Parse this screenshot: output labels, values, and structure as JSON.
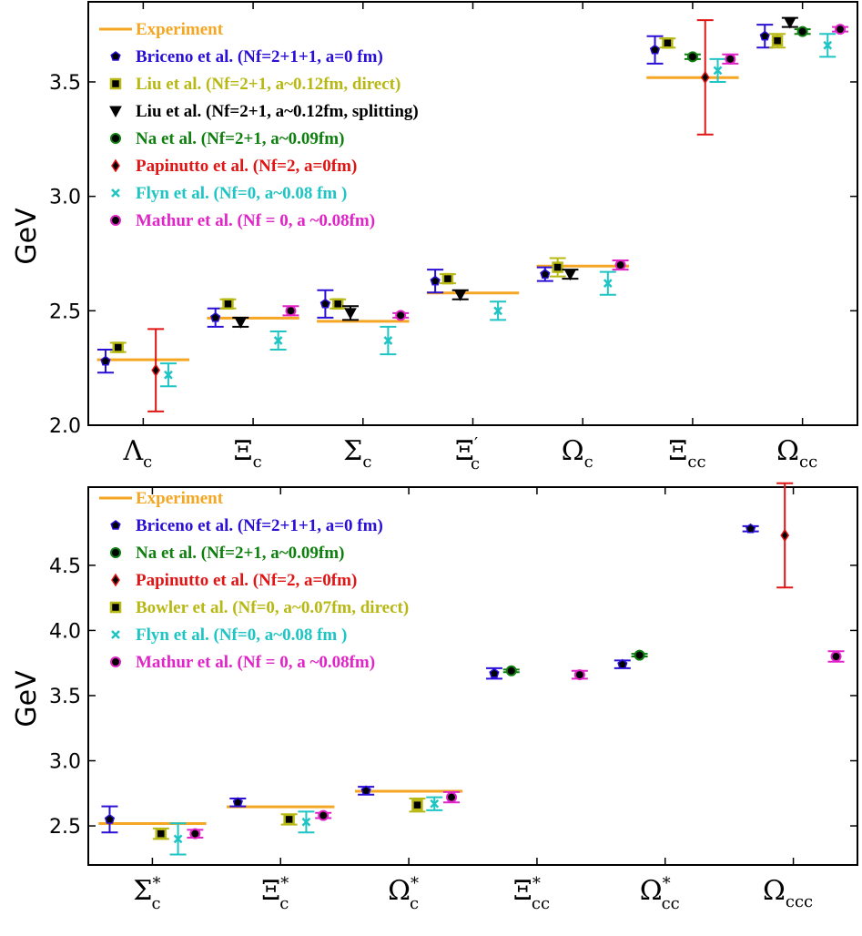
{
  "chart_data": [
    {
      "type": "scatter",
      "ylabel": "GeV",
      "ylim": [
        2.0,
        3.85
      ],
      "yticks": [
        2.0,
        2.5,
        3.0,
        3.5
      ],
      "categories": [
        {
          "name": "Λ_c",
          "main": "Λ",
          "sub": "c",
          "prime": false
        },
        {
          "name": "Ξ_c",
          "main": "Ξ",
          "sub": "c",
          "prime": false
        },
        {
          "name": "Σ_c",
          "main": "Σ",
          "sub": "c",
          "prime": false
        },
        {
          "name": "Ξ'_c",
          "main": "Ξ",
          "sub": "c",
          "prime": true
        },
        {
          "name": "Ω_c",
          "main": "Ω",
          "sub": "c",
          "prime": false
        },
        {
          "name": "Ξ_cc",
          "main": "Ξ",
          "sub": "cc",
          "prime": false
        },
        {
          "name": "Ω_cc",
          "main": "Ω",
          "sub": "cc",
          "prime": false
        }
      ],
      "experiment": {
        "name": "Experiment",
        "color": "#f5a623",
        "values": [
          2.286,
          2.468,
          2.454,
          2.578,
          2.695,
          3.519,
          null
        ]
      },
      "series": [
        {
          "name": "Briceno et al. (Nf=2+1+1, a=0 fm)",
          "color": "#2a0fd6",
          "marker": "pentagon",
          "values": [
            2.28,
            2.47,
            2.53,
            2.63,
            2.66,
            3.64,
            3.7
          ],
          "errors": [
            0.05,
            0.04,
            0.06,
            0.05,
            0.03,
            0.06,
            0.05
          ]
        },
        {
          "name": "Liu et al. (Nf=2+1, a~0.12fm, direct)",
          "color": "#b8b814",
          "marker": "square",
          "values": [
            2.34,
            2.53,
            2.53,
            2.64,
            2.69,
            3.67,
            3.68
          ],
          "errors": [
            0.02,
            0.02,
            0.02,
            0.02,
            0.04,
            0.02,
            0.03
          ]
        },
        {
          "name": "Liu et al. (Nf=2+1, a~0.12fm, splitting)",
          "color": "#000000",
          "marker": "triangle-down",
          "values": [
            null,
            2.45,
            2.49,
            2.57,
            2.66,
            null,
            3.76
          ],
          "errors": [
            null,
            0.02,
            0.03,
            0.02,
            0.02,
            null,
            0.02
          ]
        },
        {
          "name": "Na et al. (Nf=2+1, a~0.09fm)",
          "color": "#0f7f0f",
          "marker": "circle",
          "values": [
            null,
            null,
            null,
            null,
            null,
            3.61,
            3.72
          ],
          "errors": [
            null,
            null,
            null,
            null,
            null,
            0.01,
            0.01
          ]
        },
        {
          "name": "Papinutto et al. (Nf=2, a=0fm)",
          "color": "#e01515",
          "marker": "diamond",
          "values": [
            2.24,
            null,
            null,
            null,
            null,
            3.52,
            null
          ],
          "errors": [
            0.18,
            null,
            null,
            null,
            null,
            0.25,
            null
          ]
        },
        {
          "name": "Flyn et al. (Nf=0, a~0.08 fm )",
          "color": "#1fc4c4",
          "marker": "x",
          "values": [
            2.22,
            2.37,
            2.37,
            2.5,
            2.62,
            3.55,
            3.66
          ],
          "errors": [
            0.05,
            0.04,
            0.06,
            0.04,
            0.05,
            0.05,
            0.05
          ]
        },
        {
          "name": "Mathur et al. (Nf = 0, a ~0.08fm)",
          "color": "#e024c8",
          "marker": "circle",
          "values": [
            null,
            2.5,
            2.48,
            null,
            2.7,
            3.6,
            3.73
          ],
          "errors": [
            null,
            0.02,
            0.01,
            null,
            0.02,
            0.02,
            0.01
          ]
        }
      ]
    },
    {
      "type": "scatter",
      "ylabel": "GeV",
      "ylim": [
        2.2,
        5.1
      ],
      "yticks": [
        2.5,
        3.0,
        3.5,
        4.0,
        4.5
      ],
      "categories": [
        {
          "name": "Σ*_c",
          "main": "Σ",
          "sub": "c",
          "star": true
        },
        {
          "name": "Ξ*_c",
          "main": "Ξ",
          "sub": "c",
          "star": true
        },
        {
          "name": "Ω*_c",
          "main": "Ω",
          "sub": "c",
          "star": true
        },
        {
          "name": "Ξ*_cc",
          "main": "Ξ",
          "sub": "cc",
          "star": true
        },
        {
          "name": "Ω*_cc",
          "main": "Ω",
          "sub": "cc",
          "star": true
        },
        {
          "name": "Ω_ccc",
          "main": "Ω",
          "sub": "ccc",
          "star": false
        }
      ],
      "experiment": {
        "name": "Experiment",
        "color": "#f5a623",
        "values": [
          2.518,
          2.646,
          2.766,
          null,
          null,
          null
        ]
      },
      "series": [
        {
          "name": "Briceno et al. (Nf=2+1+1, a=0 fm)",
          "color": "#2a0fd6",
          "marker": "pentagon",
          "values": [
            2.55,
            2.68,
            2.77,
            3.67,
            3.74,
            4.78
          ],
          "errors": [
            0.1,
            0.03,
            0.03,
            0.04,
            0.03,
            0.02
          ]
        },
        {
          "name": "Na et al. (Nf=2+1, a~0.09fm)",
          "color": "#0f7f0f",
          "marker": "circle",
          "values": [
            null,
            null,
            null,
            3.69,
            3.81,
            null
          ],
          "errors": [
            null,
            null,
            null,
            0.01,
            0.01,
            null
          ]
        },
        {
          "name": "Papinutto et al. (Nf=2, a=0fm)",
          "color": "#e01515",
          "marker": "diamond",
          "values": [
            null,
            null,
            null,
            null,
            null,
            4.73
          ],
          "errors": [
            null,
            null,
            null,
            null,
            null,
            0.4
          ]
        },
        {
          "name": "Bowler et al. (Nf=0, a~0.07fm, direct)",
          "color": "#b8b814",
          "marker": "square",
          "values": [
            2.44,
            2.55,
            2.66,
            null,
            null,
            null
          ],
          "errors": [
            0.04,
            0.04,
            0.05,
            null,
            null,
            null
          ]
        },
        {
          "name": "Flyn et al. (Nf=0, a~0.08 fm )",
          "color": "#1fc4c4",
          "marker": "x",
          "values": [
            2.4,
            2.53,
            2.67,
            null,
            null,
            null
          ],
          "errors": [
            0.12,
            0.08,
            0.05,
            null,
            null,
            null
          ]
        },
        {
          "name": "Mathur et al. (Nf = 0, a ~0.08fm)",
          "color": "#e024c8",
          "marker": "circle",
          "values": [
            2.44,
            2.58,
            2.72,
            3.66,
            null,
            3.8
          ],
          "errors": [
            0.03,
            0.02,
            0.04,
            0.03,
            null,
            0.04
          ]
        }
      ]
    }
  ]
}
